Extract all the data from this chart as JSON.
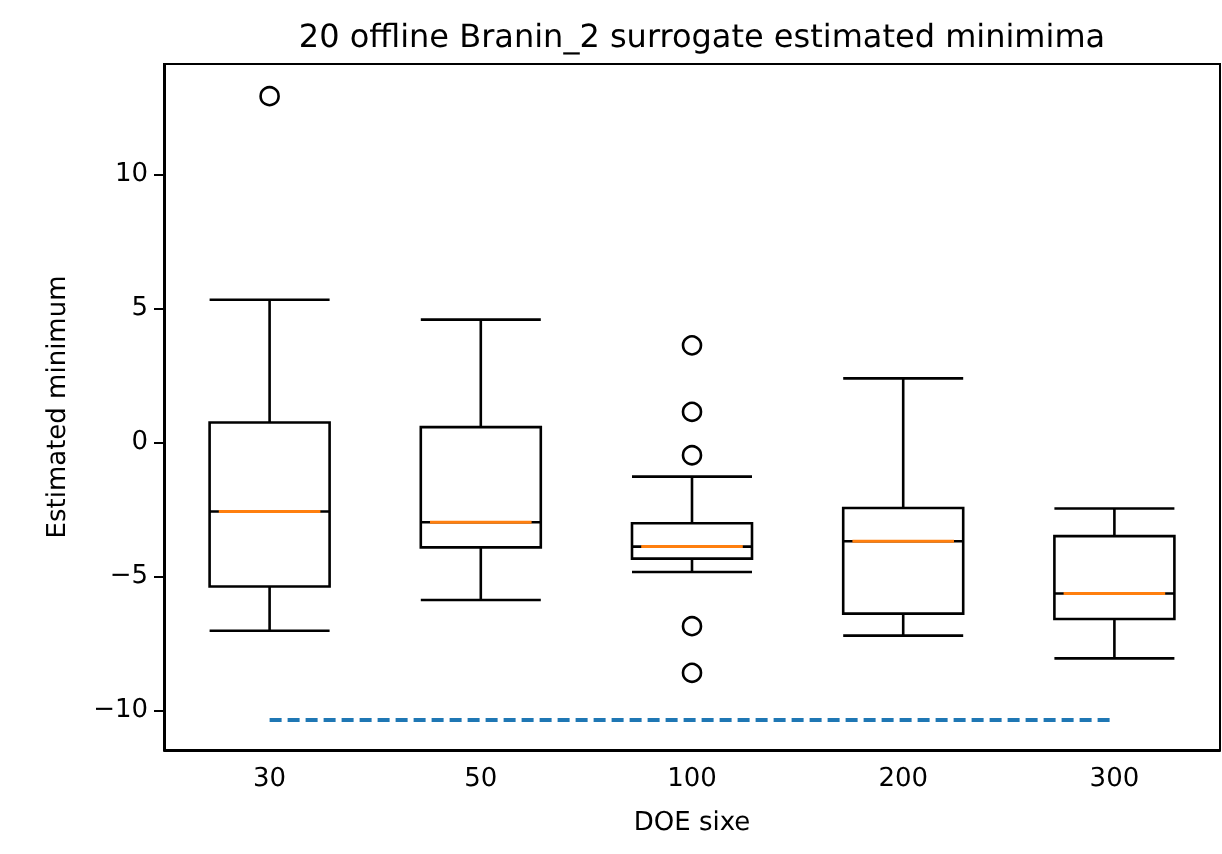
{
  "chart_data": {
    "type": "box",
    "title": "20 offline Branin_2 surrogate estimated minimima",
    "xlabel": "DOE sixe",
    "ylabel": "Estimated minimum",
    "categories": [
      "30",
      "50",
      "100",
      "200",
      "300"
    ],
    "color": "#000000",
    "boxes": [
      {
        "low": -7.05,
        "q1": -5.4,
        "median": -2.6,
        "q3": 0.72,
        "high": 5.3,
        "outliers": [
          12.9
        ]
      },
      {
        "low": -5.9,
        "q1": -3.94,
        "median": -3.0,
        "q3": 0.55,
        "high": 4.56
      },
      {
        "low": -4.86,
        "q1": -4.36,
        "median": -3.91,
        "q3": -3.04,
        "high": -1.3,
        "outliers": [
          3.6,
          1.12,
          -0.5,
          -6.88,
          -8.62
        ]
      },
      {
        "low": -7.23,
        "q1": -6.41,
        "median": -3.71,
        "q3": -2.47,
        "high": 2.37
      },
      {
        "low": -8.08,
        "q1": -6.61,
        "median": -5.66,
        "q3": -3.52,
        "high": -2.49
      }
    ],
    "ylim": [
      -11.5,
      14.1
    ],
    "yticks": [
      -10,
      -5,
      0,
      5,
      10
    ],
    "grid": false,
    "ref_lines": [
      {
        "axis": "y",
        "value": -10.37,
        "color": "#1f77b4",
        "line_style": "dashed"
      }
    ]
  }
}
